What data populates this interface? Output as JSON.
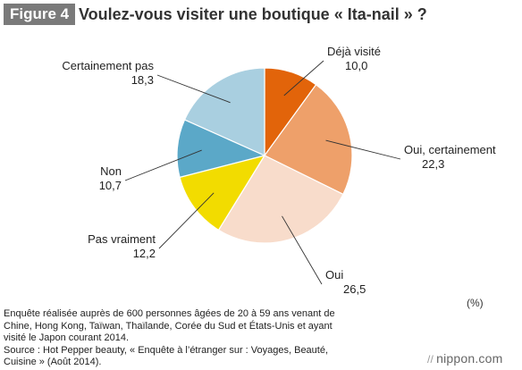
{
  "figure_label": "Figure 4",
  "title": "Voulez-vous visiter une boutique « Ita-nail » ?",
  "unit_label": "(%)",
  "note_lines": [
    "Enquête réalisée auprès de 600 personnes âgées de 20 à 59 ans venant de",
    "Chine, Hong Kong, Taïwan, Thaïlande, Corée du Sud et États-Unis et ayant",
    "visité le Japon courant 2014.",
    "Source : Hot Pepper beauty, « Enquête à l’étranger sur : Voyages, Beauté,",
    "Cuisine » (Août 2014)."
  ],
  "brand": "nippon.com",
  "brand_icon": "double-slash-icon",
  "chart_data": {
    "type": "pie",
    "unit": "%",
    "start": "12 o'clock, clockwise",
    "slices": [
      {
        "label": "Déjà visité",
        "value": 10.0,
        "value_text": "10,0",
        "color": "#e2640a"
      },
      {
        "label": "Oui, certainement",
        "value": 22.3,
        "value_text": "22,3",
        "color": "#eea06a"
      },
      {
        "label": "Oui",
        "value": 26.5,
        "value_text": "26,5",
        "color": "#f8dccb"
      },
      {
        "label": "Pas vraiment",
        "value": 12.2,
        "value_text": "12,2",
        "color": "#f2dc00"
      },
      {
        "label": "Non",
        "value": 10.7,
        "value_text": "10,7",
        "color": "#5ba8c8"
      },
      {
        "label": "Certainement pas",
        "value": 18.3,
        "value_text": "18,3",
        "color": "#a9cfe0"
      }
    ]
  }
}
